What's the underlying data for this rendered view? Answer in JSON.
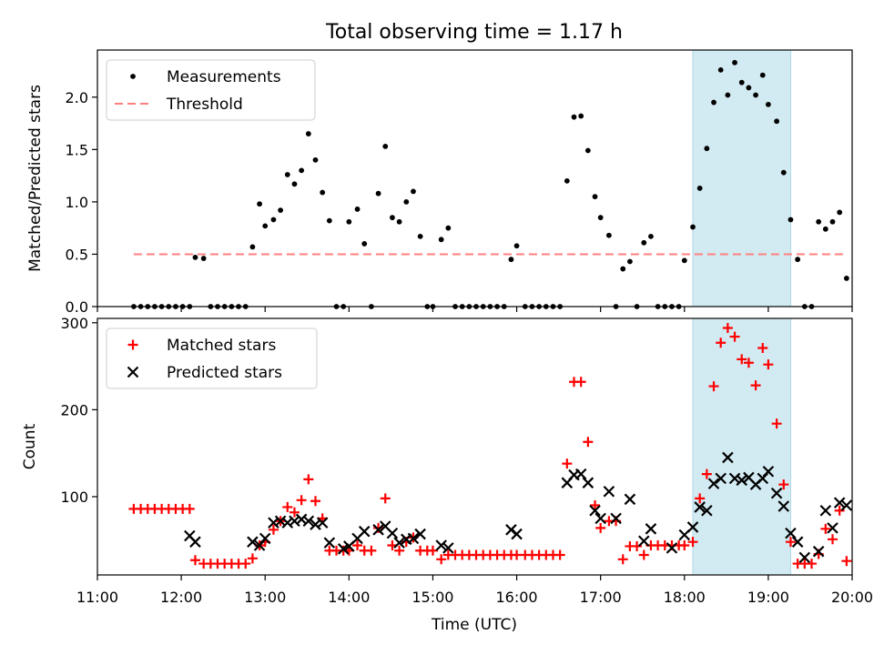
{
  "title": "Total observing time = 1.17 h",
  "colors": {
    "measurement": "#000000",
    "threshold": "#ff7f7f",
    "matched": "#ff0000",
    "predicted": "#000000",
    "highlight": "#add8e6"
  },
  "chart_data": [
    {
      "type": "scatter",
      "ylabel": "Matched/Predicted stars",
      "xlim": [
        "11:00",
        "20:00"
      ],
      "ylim": [
        0,
        2.45
      ],
      "y_ticks": [
        0.0,
        0.5,
        1.0,
        1.5,
        2.0
      ],
      "y_tick_labels": [
        "0.0",
        "0.5",
        "1.0",
        "1.5",
        "2.0"
      ],
      "legend_position": "upper-left",
      "legend": [
        {
          "label": "Measurements",
          "marker": "dot"
        },
        {
          "label": "Threshold",
          "marker": "dashed-line"
        }
      ],
      "highlight_span": {
        "x": [
          "18:06",
          "19:16"
        ]
      },
      "threshold": {
        "value": 0.5,
        "x": [
          "11:26",
          "19:56"
        ]
      },
      "series": [
        {
          "name": "Measurements",
          "x": [
            "11:26",
            "11:31",
            "11:36",
            "11:41",
            "11:46",
            "11:51",
            "11:56",
            "12:01",
            "12:06",
            "12:10",
            "12:16",
            "12:21",
            "12:26",
            "12:31",
            "12:36",
            "12:41",
            "12:46",
            "12:51",
            "12:56",
            "13:00",
            "13:06",
            "13:11",
            "13:16",
            "13:21",
            "13:26",
            "13:31",
            "13:36",
            "13:41",
            "13:46",
            "13:51",
            "13:56",
            "14:00",
            "14:06",
            "14:11",
            "14:16",
            "14:21",
            "14:26",
            "14:31",
            "14:36",
            "14:41",
            "14:46",
            "14:51",
            "14:56",
            "15:00",
            "15:06",
            "15:11",
            "15:16",
            "15:21",
            "15:26",
            "15:31",
            "15:36",
            "15:41",
            "15:46",
            "15:51",
            "15:56",
            "16:00",
            "16:06",
            "16:11",
            "16:16",
            "16:21",
            "16:26",
            "16:31",
            "16:36",
            "16:41",
            "16:46",
            "16:51",
            "16:56",
            "17:00",
            "17:06",
            "17:11",
            "17:16",
            "17:21",
            "17:26",
            "17:31",
            "17:36",
            "17:41",
            "17:46",
            "17:51",
            "17:56",
            "18:00",
            "18:06",
            "18:11",
            "18:16",
            "18:21",
            "18:26",
            "18:31",
            "18:36",
            "18:41",
            "18:46",
            "18:51",
            "18:56",
            "19:00",
            "19:06",
            "19:11",
            "19:16",
            "19:21",
            "19:26",
            "19:31",
            "19:36",
            "19:41",
            "19:46",
            "19:51",
            "19:56"
          ],
          "y": [
            0,
            0,
            0,
            0,
            0,
            0,
            0,
            0,
            0,
            0.47,
            0.46,
            0,
            0,
            0,
            0,
            0,
            0,
            0.57,
            0.98,
            0.77,
            0.83,
            0.92,
            1.26,
            1.17,
            1.3,
            1.65,
            1.4,
            1.09,
            0.82,
            0,
            0,
            0.81,
            0.93,
            0.6,
            0,
            1.08,
            1.53,
            0.85,
            0.81,
            1.0,
            1.1,
            0.67,
            0,
            0,
            0.64,
            0.75,
            0,
            0,
            0,
            0,
            0,
            0,
            0,
            0,
            0.45,
            0.58,
            0,
            0,
            0,
            0,
            0,
            0,
            1.2,
            1.81,
            1.82,
            1.49,
            1.05,
            0.85,
            0.68,
            0,
            0.36,
            0.43,
            0,
            0.61,
            0.67,
            0,
            0,
            0,
            0,
            0.44,
            0.76,
            1.13,
            1.51,
            1.95,
            2.26,
            2.02,
            2.33,
            2.14,
            2.09,
            2.02,
            2.21,
            1.93,
            1.77,
            1.28,
            0.83,
            0.45,
            0,
            0,
            0.81,
            0.74,
            0.81,
            0.9,
            0.27
          ]
        }
      ]
    },
    {
      "type": "scatter",
      "xlabel": "Time (UTC)",
      "ylabel": "Count",
      "xlim": [
        "11:00",
        "20:00"
      ],
      "x_ticks": [
        "11:00",
        "12:00",
        "13:00",
        "14:00",
        "15:00",
        "16:00",
        "17:00",
        "18:00",
        "19:00",
        "20:00"
      ],
      "ylim": [
        10,
        305
      ],
      "y_ticks": [
        100,
        200,
        300
      ],
      "y_tick_labels": [
        "100",
        "200",
        "300"
      ],
      "legend_position": "upper-left",
      "legend": [
        {
          "label": "Matched stars",
          "marker": "plus"
        },
        {
          "label": "Predicted stars",
          "marker": "x"
        }
      ],
      "highlight_span": {
        "x": [
          "18:06",
          "19:16"
        ]
      },
      "series": [
        {
          "name": "Matched stars",
          "marker": "plus",
          "x": [
            "11:26",
            "11:31",
            "11:36",
            "11:41",
            "11:46",
            "11:51",
            "11:56",
            "12:01",
            "12:06",
            "12:10",
            "12:16",
            "12:21",
            "12:26",
            "12:31",
            "12:36",
            "12:41",
            "12:46",
            "12:51",
            "12:56",
            "13:00",
            "13:06",
            "13:11",
            "13:16",
            "13:21",
            "13:26",
            "13:31",
            "13:36",
            "13:41",
            "13:46",
            "13:51",
            "13:56",
            "14:00",
            "14:06",
            "14:11",
            "14:16",
            "14:21",
            "14:26",
            "14:31",
            "14:36",
            "14:41",
            "14:46",
            "14:51",
            "14:56",
            "15:00",
            "15:06",
            "15:11",
            "15:16",
            "15:21",
            "15:26",
            "15:31",
            "15:36",
            "15:41",
            "15:46",
            "15:51",
            "15:56",
            "16:00",
            "16:06",
            "16:11",
            "16:16",
            "16:21",
            "16:26",
            "16:31",
            "16:36",
            "16:41",
            "16:46",
            "16:51",
            "16:56",
            "17:00",
            "17:06",
            "17:11",
            "17:16",
            "17:21",
            "17:26",
            "17:31",
            "17:36",
            "17:41",
            "17:46",
            "17:51",
            "17:56",
            "18:00",
            "18:06",
            "18:11",
            "18:16",
            "18:21",
            "18:26",
            "18:31",
            "18:36",
            "18:41",
            "18:46",
            "18:51",
            "18:56",
            "19:00",
            "19:06",
            "19:11",
            "19:16",
            "19:21",
            "19:26",
            "19:31",
            "19:36",
            "19:41",
            "19:46",
            "19:51",
            "19:56"
          ],
          "y": [
            86,
            86,
            86,
            86,
            86,
            86,
            86,
            86,
            86,
            27,
            23,
            23,
            23,
            23,
            23,
            23,
            23,
            29,
            44,
            48,
            62,
            72,
            88,
            82,
            96,
            120,
            95,
            75,
            38,
            38,
            38,
            38,
            44,
            38,
            38,
            64,
            98,
            44,
            38,
            48,
            53,
            38,
            38,
            38,
            28,
            33,
            33,
            33,
            33,
            33,
            33,
            33,
            33,
            33,
            33,
            33,
            33,
            33,
            33,
            33,
            33,
            33,
            138,
            232,
            232,
            163,
            90,
            64,
            72,
            72,
            28,
            43,
            43,
            33,
            44,
            44,
            44,
            44,
            44,
            44,
            48,
            98,
            126,
            227,
            277,
            294,
            284,
            258,
            254,
            228,
            271,
            252,
            184,
            114,
            48,
            23,
            23,
            23,
            34,
            63,
            51,
            84,
            26
          ]
        },
        {
          "name": "Predicted stars",
          "marker": "x",
          "x": [
            "12:06",
            "12:10",
            "12:51",
            "12:56",
            "13:00",
            "13:06",
            "13:11",
            "13:16",
            "13:21",
            "13:26",
            "13:31",
            "13:36",
            "13:41",
            "13:46",
            "13:56",
            "14:00",
            "14:06",
            "14:11",
            "14:21",
            "14:26",
            "14:31",
            "14:36",
            "14:41",
            "14:46",
            "14:51",
            "15:06",
            "15:11",
            "15:56",
            "16:00",
            "16:36",
            "16:41",
            "16:46",
            "16:51",
            "16:56",
            "17:00",
            "17:06",
            "17:11",
            "17:21",
            "17:31",
            "17:36",
            "17:51",
            "18:00",
            "18:06",
            "18:11",
            "18:16",
            "18:21",
            "18:26",
            "18:31",
            "18:36",
            "18:41",
            "18:46",
            "18:51",
            "18:56",
            "19:00",
            "19:06",
            "19:11",
            "19:16",
            "19:21",
            "19:26",
            "19:36",
            "19:41",
            "19:46",
            "19:51",
            "19:56"
          ],
          "y": [
            55,
            48,
            48,
            44,
            52,
            70,
            72,
            70,
            72,
            74,
            72,
            68,
            70,
            47,
            40,
            43,
            52,
            60,
            62,
            66,
            58,
            47,
            51,
            52,
            57,
            44,
            41,
            62,
            57,
            116,
            125,
            126,
            116,
            84,
            75,
            106,
            75,
            97,
            49,
            63,
            41,
            56,
            65,
            88,
            84,
            115,
            121,
            145,
            121,
            119,
            122,
            114,
            121,
            129,
            104,
            89,
            58,
            48,
            30,
            37,
            84,
            64,
            93,
            90
          ]
        }
      ]
    }
  ]
}
